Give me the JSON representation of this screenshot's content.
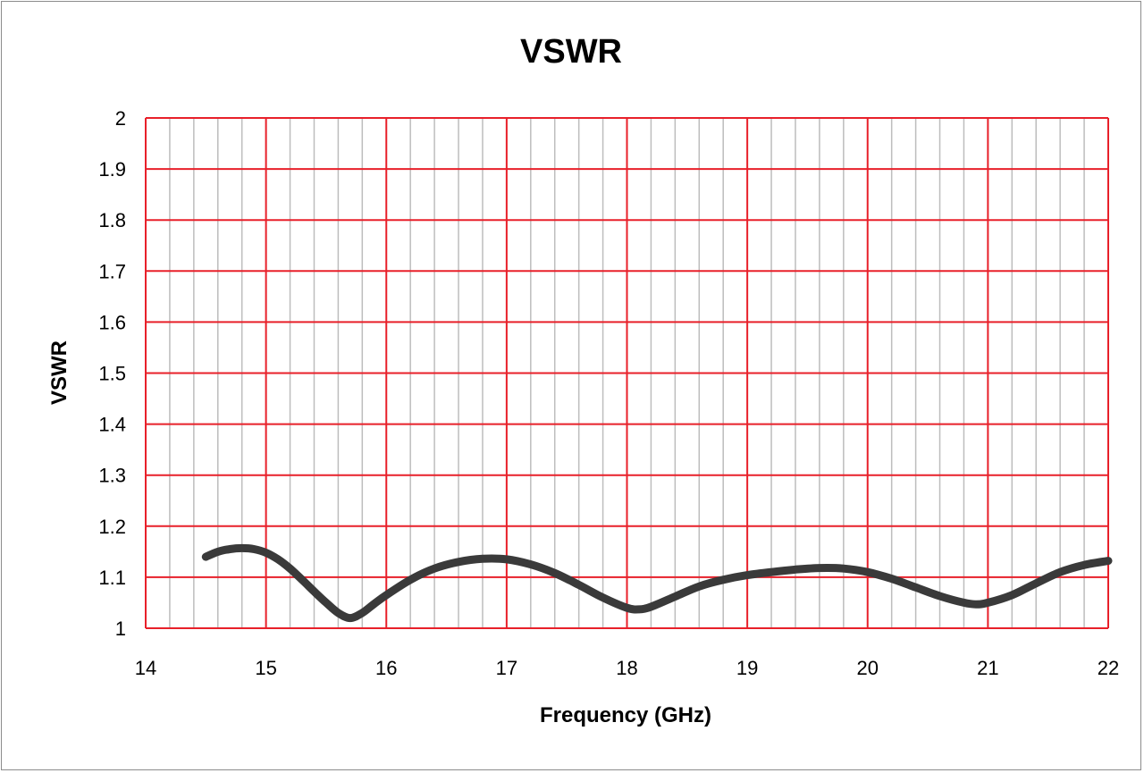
{
  "chart_data": {
    "type": "line",
    "title": "VSWR",
    "xlabel": "Frequency (GHz)",
    "ylabel": "VSWR",
    "xlim": [
      14,
      22
    ],
    "ylim": [
      1,
      2
    ],
    "x_ticks": [
      "14",
      "15",
      "16",
      "17",
      "18",
      "19",
      "20",
      "21",
      "22"
    ],
    "y_ticks": [
      "1",
      "1.1",
      "1.2",
      "1.3",
      "1.4",
      "1.5",
      "1.6",
      "1.7",
      "1.8",
      "1.9",
      "2"
    ],
    "x_minor_step": 0.2,
    "grid": true,
    "legend": "none",
    "colors": {
      "major_grid": "#e8202a",
      "minor_grid": "#bdbdbd",
      "line": "#3a3a3a"
    },
    "series": [
      {
        "x": [
          14.5,
          14.6,
          14.7,
          14.8,
          14.9,
          15.0,
          15.1,
          15.2,
          15.3,
          15.4,
          15.5,
          15.6,
          15.7,
          15.8,
          15.9,
          16.0,
          16.2,
          16.4,
          16.6,
          16.8,
          17.0,
          17.2,
          17.4,
          17.6,
          17.8,
          18.0,
          18.1,
          18.2,
          18.4,
          18.6,
          18.8,
          19.0,
          19.2,
          19.4,
          19.6,
          19.8,
          20.0,
          20.2,
          20.4,
          20.6,
          20.8,
          20.9,
          21.0,
          21.2,
          21.4,
          21.6,
          21.8,
          22.0
        ],
        "y": [
          1.14,
          1.15,
          1.155,
          1.157,
          1.155,
          1.148,
          1.135,
          1.117,
          1.095,
          1.072,
          1.05,
          1.03,
          1.02,
          1.03,
          1.048,
          1.065,
          1.095,
          1.117,
          1.13,
          1.136,
          1.135,
          1.125,
          1.108,
          1.085,
          1.06,
          1.04,
          1.037,
          1.042,
          1.062,
          1.082,
          1.095,
          1.104,
          1.11,
          1.115,
          1.118,
          1.117,
          1.11,
          1.097,
          1.08,
          1.063,
          1.05,
          1.047,
          1.05,
          1.065,
          1.088,
          1.11,
          1.124,
          1.132
        ]
      }
    ]
  }
}
